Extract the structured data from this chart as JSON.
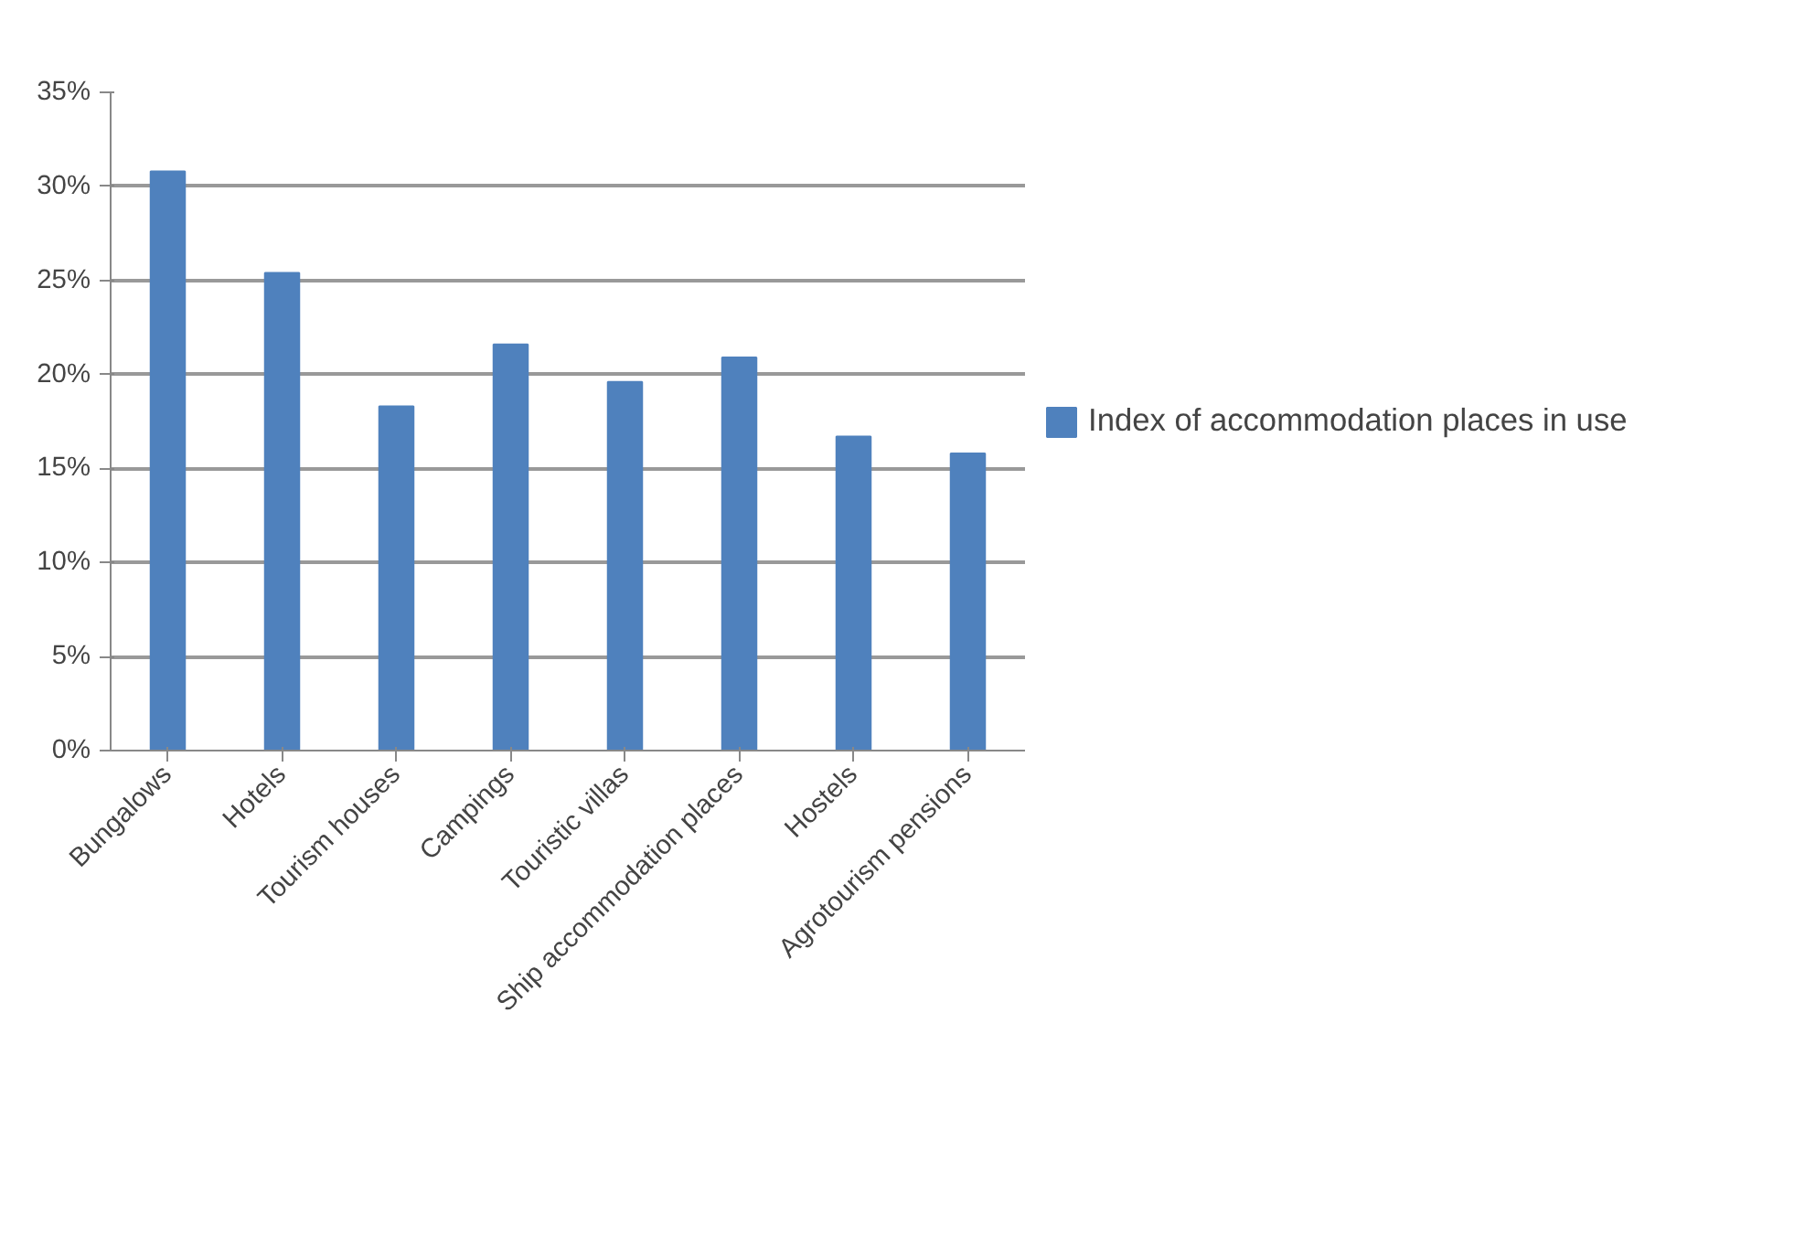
{
  "chart_data": {
    "type": "bar",
    "categories": [
      "Bungalows",
      "Hotels",
      "Tourism houses",
      "Campings",
      "Touristic villas",
      "Ship accommodation places",
      "Hostels",
      "Agrotourism pensions"
    ],
    "series": [
      {
        "name": "Index of accommodation places in use",
        "color": "#4f81bd",
        "values": [
          30.8,
          25.4,
          18.3,
          21.6,
          19.6,
          20.9,
          16.7,
          15.8
        ]
      }
    ],
    "ylim": [
      0,
      35
    ],
    "yticks": [
      {
        "value": 0,
        "label": "0%"
      },
      {
        "value": 5,
        "label": "5%"
      },
      {
        "value": 10,
        "label": "10%"
      },
      {
        "value": 15,
        "label": "15%"
      },
      {
        "value": 20,
        "label": "20%"
      },
      {
        "value": 25,
        "label": "25%"
      },
      {
        "value": 30,
        "label": "30%"
      },
      {
        "value": 35,
        "label": "35%"
      }
    ],
    "grid": "y",
    "legend": "right"
  }
}
